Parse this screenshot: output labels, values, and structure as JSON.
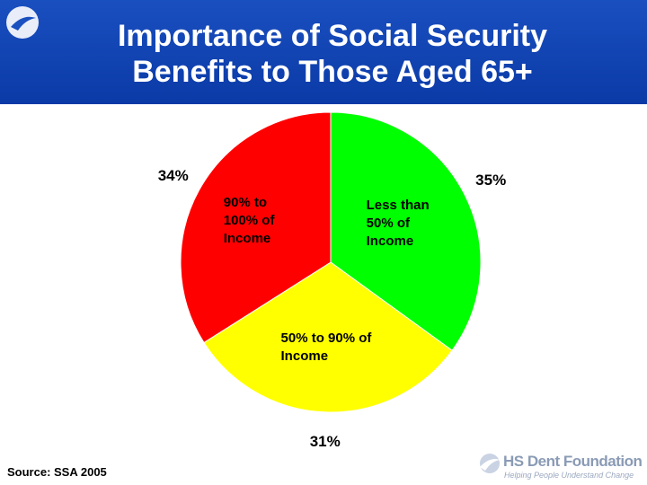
{
  "chart_data": {
    "type": "pie",
    "title": "Importance of Social Security Benefits to Those Aged 65+",
    "categories": [
      "Less than 50% of Income",
      "50% to 90% of Income",
      "90% to 100% of Income"
    ],
    "values": [
      35,
      31,
      34
    ],
    "value_labels": [
      "35%",
      "31%",
      "34%"
    ],
    "colors": [
      "#00ff00",
      "#ffff00",
      "#ff0000"
    ]
  },
  "source": "Source: SSA 2005",
  "logo": {
    "name": "HS Dent Foundation",
    "tagline": "Helping People Understand Change"
  }
}
